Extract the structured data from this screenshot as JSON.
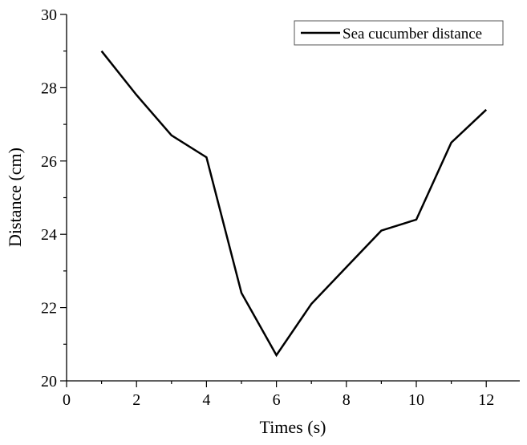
{
  "chart_data": {
    "type": "line",
    "xlabel": "Times (s)",
    "ylabel": "Distance (cm)",
    "xlim": [
      0,
      13
    ],
    "ylim": [
      20,
      30
    ],
    "x_ticks": [
      0,
      2,
      4,
      6,
      8,
      10,
      12
    ],
    "y_ticks": [
      20,
      22,
      24,
      26,
      28,
      30
    ],
    "grid": false,
    "legend_position": "top-right",
    "series": [
      {
        "name": "Sea cucumber distance",
        "color": "#000000",
        "x": [
          1,
          2,
          3,
          4,
          5,
          6,
          7,
          8,
          9,
          10,
          11,
          12
        ],
        "y": [
          29.0,
          27.8,
          26.7,
          26.1,
          22.4,
          20.7,
          22.1,
          23.1,
          24.1,
          24.4,
          26.5,
          27.4
        ]
      }
    ]
  }
}
